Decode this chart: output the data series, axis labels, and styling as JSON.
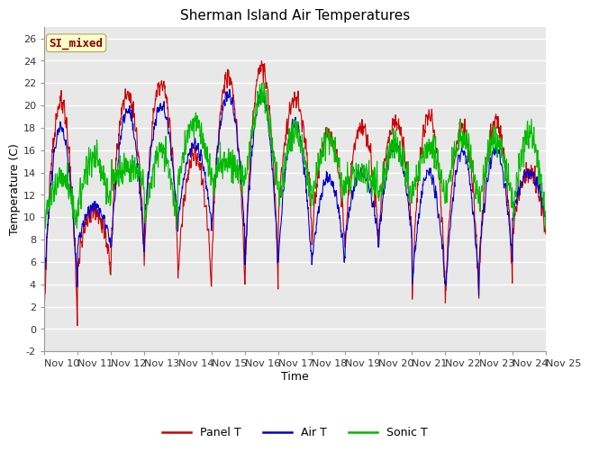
{
  "title": "Sherman Island Air Temperatures",
  "xlabel": "Time",
  "ylabel": "Temperature (C)",
  "ylim": [
    -2,
    27
  ],
  "yticks": [
    -2,
    0,
    2,
    4,
    6,
    8,
    10,
    12,
    14,
    16,
    18,
    20,
    22,
    24,
    26
  ],
  "x_labels": [
    "Nov 10",
    "Nov 11",
    "Nov 12",
    "Nov 13",
    "Nov 14",
    "Nov 15",
    "Nov 16",
    "Nov 17",
    "Nov 18",
    "Nov 19",
    "Nov 20",
    "Nov 21",
    "Nov 22",
    "Nov 23",
    "Nov 24",
    "Nov 25"
  ],
  "annotation_text": "SI_mixed",
  "annotation_color": "#8B0000",
  "annotation_bg": "#FFFFCC",
  "panel_color": "#CC0000",
  "air_color": "#0000CC",
  "sonic_color": "#00BB00",
  "plot_bg_color": "#E8E8E8",
  "grid_color": "#FFFFFF",
  "title_fontsize": 11,
  "axis_fontsize": 9,
  "tick_fontsize": 8,
  "legend_fontsize": 9
}
